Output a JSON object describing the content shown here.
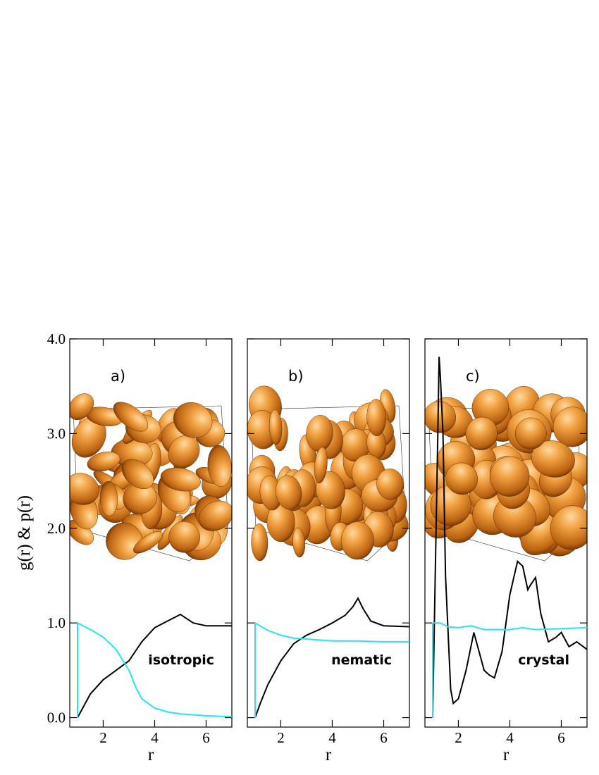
{
  "chart_data": [
    {
      "type": "line",
      "label": "a)",
      "annotation": "isotropic",
      "xlabel": "r",
      "ylabel": "g(r) & p(r)",
      "xlim": [
        0.7,
        7
      ],
      "ylim": [
        -0.1,
        4.0
      ],
      "xticks": [
        2,
        4,
        6
      ],
      "yticks": [
        {
          "value": 0,
          "label": "0.0"
        },
        {
          "value": 1,
          "label": "1.0"
        },
        {
          "value": 2,
          "label": "2.0"
        },
        {
          "value": 3,
          "label": "3.0"
        },
        {
          "value": 4,
          "label": "4.0"
        }
      ],
      "series": [
        {
          "color": "#000000",
          "x": [
            1,
            1.2,
            1.5,
            2,
            2.5,
            3,
            3.5,
            4,
            4.5,
            5,
            5.5,
            6,
            7
          ],
          "values": [
            0,
            0.1,
            0.25,
            0.4,
            0.5,
            0.6,
            0.8,
            0.95,
            1.02,
            1.09,
            1.0,
            0.97,
            0.97
          ]
        },
        {
          "color": "#22e5f0",
          "x": [
            1,
            1,
            1.5,
            2,
            2.5,
            3,
            3.3,
            3.5,
            4,
            4.5,
            5,
            6,
            7
          ],
          "values": [
            0,
            1.0,
            0.93,
            0.85,
            0.72,
            0.5,
            0.3,
            0.2,
            0.1,
            0.06,
            0.04,
            0.02,
            0.01
          ]
        }
      ]
    },
    {
      "type": "line",
      "label": "b)",
      "annotation": "nematic",
      "xlabel": "r",
      "xlim": [
        0.7,
        7
      ],
      "ylim": [
        -0.1,
        4.0
      ],
      "xticks": [
        2,
        4,
        6
      ],
      "series": [
        {
          "color": "#000000",
          "x": [
            1,
            1.2,
            1.5,
            2,
            2.5,
            3,
            3.5,
            4,
            4.5,
            4.8,
            5,
            5.2,
            5.5,
            6,
            7
          ],
          "values": [
            0,
            0.15,
            0.35,
            0.6,
            0.78,
            0.87,
            0.93,
            1.0,
            1.08,
            1.17,
            1.26,
            1.15,
            1.02,
            0.97,
            0.96
          ]
        },
        {
          "color": "#22e5f0",
          "x": [
            1,
            1,
            1.5,
            2,
            2.5,
            3,
            4,
            5,
            6,
            7
          ],
          "values": [
            0,
            1.0,
            0.92,
            0.87,
            0.84,
            0.83,
            0.81,
            0.81,
            0.8,
            0.8
          ]
        }
      ]
    },
    {
      "type": "line",
      "label": "c)",
      "annotation": "crystal",
      "xlabel": "r",
      "xlim": [
        0.7,
        7
      ],
      "ylim": [
        -0.1,
        4.0
      ],
      "xticks": [
        2,
        4,
        6
      ],
      "series": [
        {
          "color": "#000000",
          "x": [
            1,
            1.1,
            1.2,
            1.25,
            1.3,
            1.4,
            1.5,
            1.7,
            1.8,
            2,
            2.3,
            2.6,
            2.8,
            3,
            3.2,
            3.4,
            3.7,
            4,
            4.3,
            4.5,
            4.7,
            4.8,
            5,
            5.2,
            5.5,
            5.8,
            6,
            6.3,
            6.6,
            7
          ],
          "values": [
            0,
            1.5,
            3.0,
            3.81,
            3.6,
            3.0,
            1.5,
            0.3,
            0.15,
            0.2,
            0.5,
            0.9,
            0.7,
            0.5,
            0.45,
            0.42,
            0.7,
            1.3,
            1.65,
            1.6,
            1.35,
            1.4,
            1.48,
            1.1,
            0.8,
            0.85,
            0.9,
            0.75,
            0.8,
            0.72
          ]
        },
        {
          "color": "#22e5f0",
          "x": [
            1,
            1,
            1.3,
            1.6,
            2,
            2.5,
            3,
            4,
            4.5,
            5,
            6,
            7
          ],
          "values": [
            0,
            1.0,
            1.0,
            0.96,
            0.95,
            0.97,
            0.93,
            0.93,
            0.95,
            0.93,
            0.94,
            0.95
          ]
        }
      ]
    }
  ]
}
